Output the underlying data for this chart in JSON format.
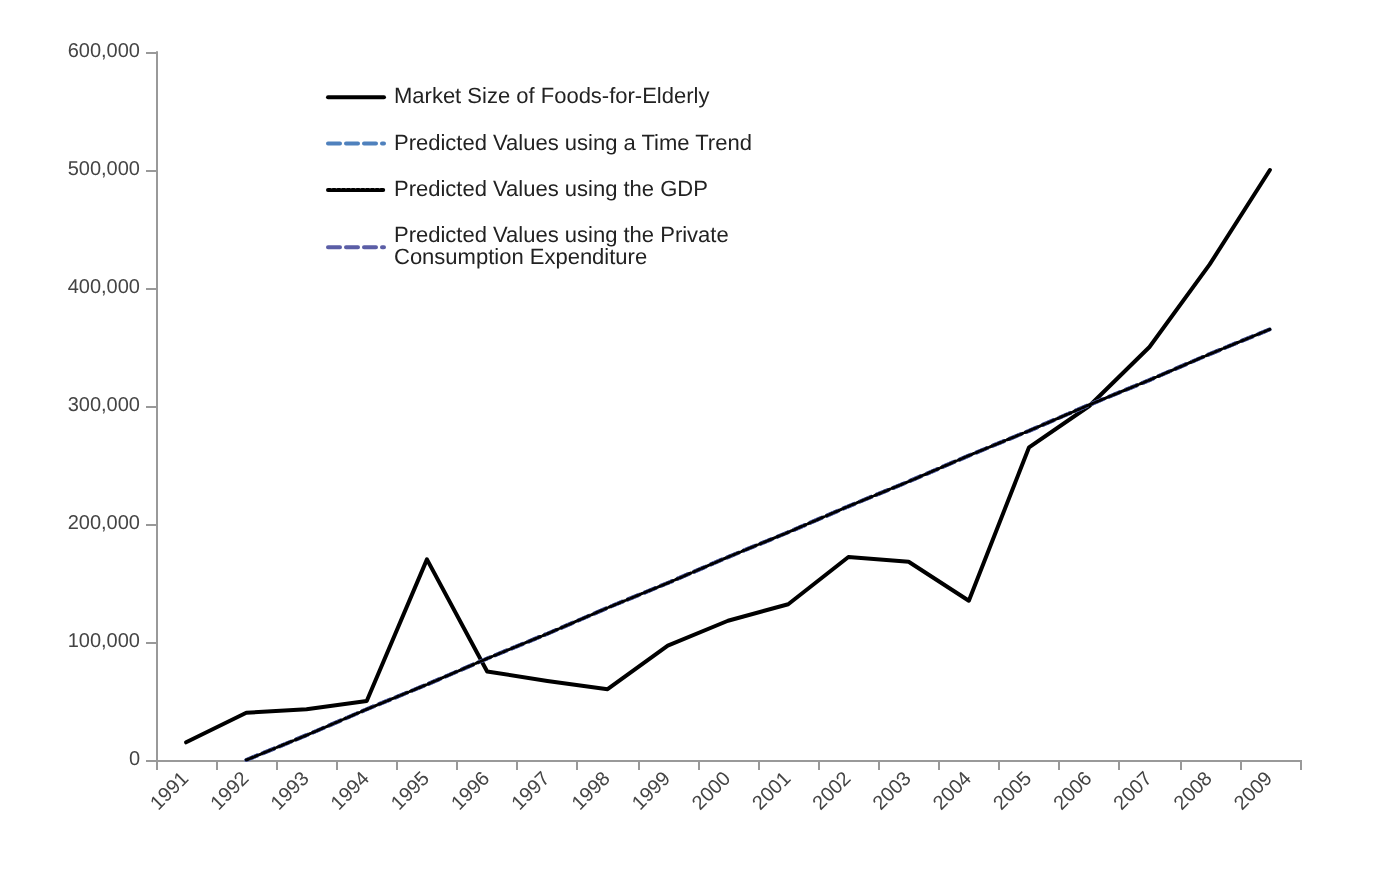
{
  "chart_data": {
    "type": "line",
    "categories": [
      "1991",
      "1992",
      "1993",
      "1994",
      "1995",
      "1996",
      "1997",
      "1998",
      "1999",
      "2000",
      "2001",
      "2002",
      "2003",
      "2004",
      "2005",
      "2006",
      "2007",
      "2008",
      "2009"
    ],
    "ylim": [
      0,
      600000
    ],
    "yticks": [
      {
        "value": 0,
        "label": "0"
      },
      {
        "value": 100000,
        "label": "100,000"
      },
      {
        "value": 200000,
        "label": "200,000"
      },
      {
        "value": 300000,
        "label": "300,000"
      },
      {
        "value": 400000,
        "label": "400,000"
      },
      {
        "value": 500000,
        "label": "500,000"
      },
      {
        "value": 600000,
        "label": "600,000"
      }
    ],
    "grid": false,
    "legend": "top left",
    "marker": "none",
    "series": [
      {
        "name": "Market Size of Foods-for-Elderly",
        "color": "#000000",
        "line_style": "solid",
        "values": [
          15000,
          40000,
          43000,
          50000,
          170000,
          75000,
          67000,
          60000,
          97000,
          118000,
          132000,
          172000,
          168000,
          135000,
          265000,
          300000,
          350000,
          420000,
          500000
        ]
      },
      {
        "name": "Predicted Values using a Time Trend",
        "color": "#4f81bd",
        "line_style": "dashed",
        "values": [
          null,
          0,
          21000,
          43000,
          64000,
          86000,
          107000,
          129000,
          150000,
          172000,
          193000,
          215000,
          236000,
          258000,
          279000,
          301000,
          322000,
          344000,
          365000
        ]
      },
      {
        "name": "Predicted Values using the GDP",
        "color": "#000000",
        "line_style": "dotted",
        "values": [
          null,
          0,
          21000,
          43000,
          64000,
          86000,
          107000,
          129000,
          150000,
          172000,
          193000,
          215000,
          236000,
          258000,
          279000,
          301000,
          322000,
          344000,
          365000
        ]
      },
      {
        "name": "Predicted Values using the Private\nConsumption Expenditure",
        "color": "#5b5ea6",
        "line_style": "dashed",
        "values": [
          null,
          0,
          21000,
          43000,
          64000,
          86000,
          107000,
          129000,
          150000,
          172000,
          193000,
          215000,
          236000,
          258000,
          279000,
          301000,
          322000,
          344000,
          365000
        ]
      }
    ]
  }
}
